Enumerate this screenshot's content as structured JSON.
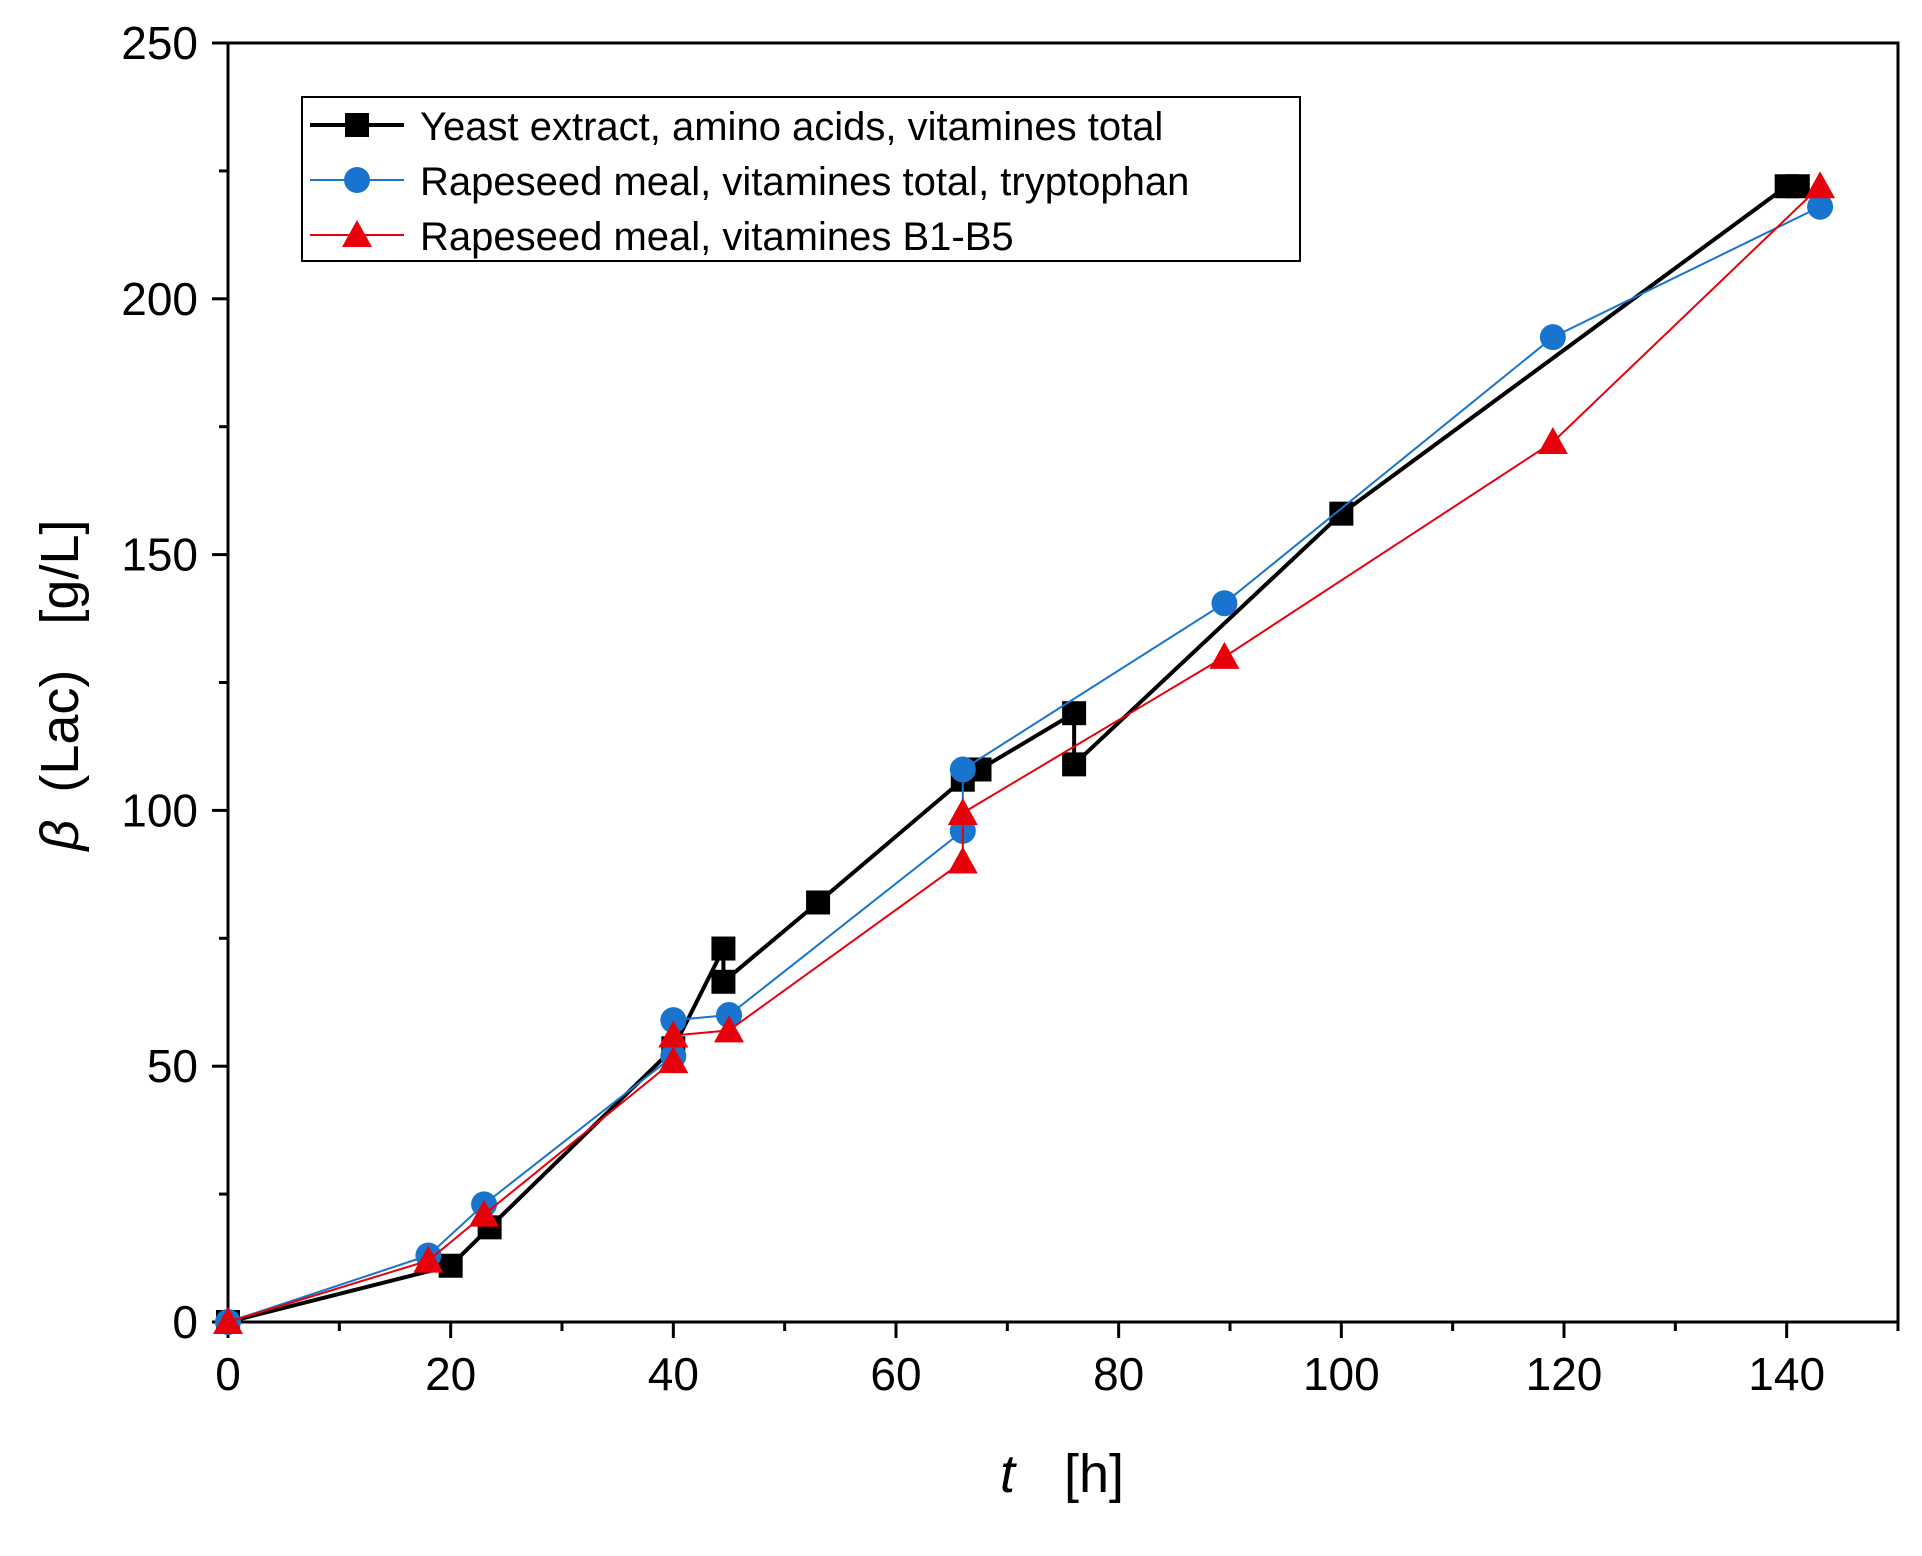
{
  "chart_data": {
    "type": "line",
    "title": "",
    "xlabel": {
      "symbol": "t",
      "unit": "[h]"
    },
    "ylabel": {
      "symbol": "β",
      "name": "(Lac)",
      "unit": "[g/L]"
    },
    "xlim": [
      0,
      150
    ],
    "ylim": [
      0,
      250
    ],
    "x_ticks": [
      0,
      20,
      40,
      60,
      80,
      100,
      120,
      140
    ],
    "y_ticks": [
      0,
      50,
      100,
      150,
      200,
      250
    ],
    "x_minor_step": 10,
    "y_minor_step": 25,
    "grid": false,
    "legend_position": "top-left",
    "series": [
      {
        "name": "Yeast extract, amino acids, vitamines total",
        "color": "#000000",
        "marker": "square",
        "x": [
          0,
          20,
          23.5,
          40,
          44.5,
          44.5,
          53,
          66,
          67.5,
          76,
          76,
          100,
          140,
          141
        ],
        "y": [
          0,
          11,
          18.5,
          53.5,
          73,
          66.5,
          82,
          106,
          108,
          119,
          109,
          158,
          222,
          222
        ]
      },
      {
        "name": "Rapeseed meal, vitamines total, tryptophan",
        "color": "#1874cd",
        "marker": "circle",
        "x": [
          0,
          18,
          23,
          40,
          40,
          45,
          66,
          66,
          89.5,
          119,
          143
        ],
        "y": [
          0,
          13,
          23,
          52,
          59,
          60,
          96,
          108,
          140.5,
          192.5,
          218
        ]
      },
      {
        "name": "Rapeseed meal, vitamines B1-B5",
        "color": "#e8000b",
        "marker": "triangle",
        "x": [
          0,
          18,
          23,
          40,
          40,
          45,
          66,
          66,
          89.5,
          119,
          143
        ],
        "y": [
          0,
          12,
          21,
          51,
          56,
          57,
          90,
          99.5,
          130,
          172,
          222
        ]
      }
    ]
  }
}
